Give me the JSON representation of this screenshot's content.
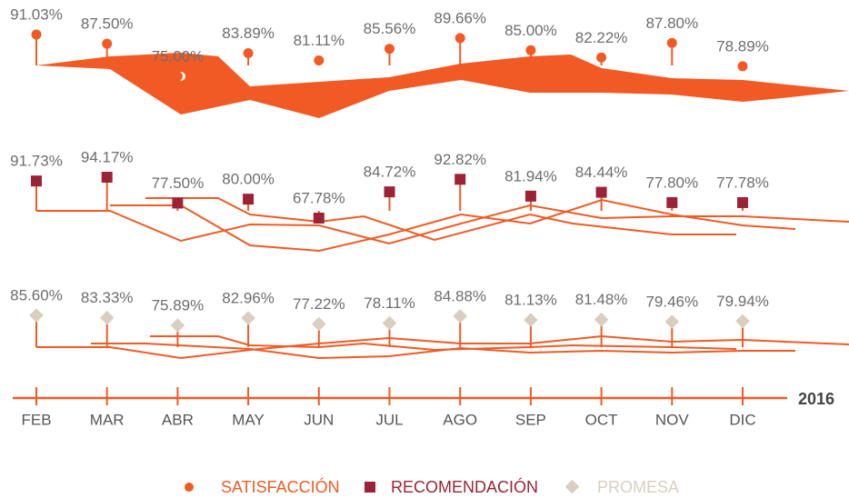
{
  "chart_data": {
    "type": "lollipop-rows",
    "categories": [
      "FEB",
      "MAR",
      "ABR",
      "MAY",
      "JUN",
      "JUL",
      "AGO",
      "SEP",
      "OCT",
      "NOV",
      "DIC"
    ],
    "year_label": "2016",
    "series": [
      {
        "name": "SATISFACCIÓN",
        "color": "#f15a24",
        "marker": "circle",
        "values": [
          91.03,
          87.5,
          75.0,
          83.89,
          81.11,
          85.56,
          89.66,
          85.0,
          82.22,
          87.8,
          78.89
        ],
        "value_labels": [
          "91.03%",
          "87.50%",
          "75.00%",
          "83.89%",
          "81.11%",
          "85.56%",
          "89.66%",
          "85.00%",
          "82.22%",
          "87.80%",
          "78.89%"
        ]
      },
      {
        "name": "RECOMENDACIÓN",
        "color": "#9b2335",
        "marker": "square",
        "values": [
          91.73,
          94.17,
          77.5,
          80.0,
          67.78,
          84.72,
          92.82,
          81.94,
          84.44,
          77.8,
          77.78
        ],
        "value_labels": [
          "91.73%",
          "94.17%",
          "77.50%",
          "80.00%",
          "67.78%",
          "84.72%",
          "92.82%",
          "81.94%",
          "84.44%",
          "77.80%",
          "77.78%"
        ]
      },
      {
        "name": "PROMESA",
        "color": "#d8cfc0",
        "marker": "diamond",
        "values": [
          85.6,
          83.33,
          75.89,
          82.96,
          77.22,
          78.11,
          84.88,
          81.13,
          81.48,
          79.46,
          79.94
        ],
        "value_labels": [
          "85.60%",
          "83.33%",
          "75.89%",
          "82.96%",
          "77.22%",
          "78.11%",
          "84.88%",
          "81.13%",
          "81.48%",
          "79.46%",
          "79.94%"
        ]
      }
    ]
  }
}
